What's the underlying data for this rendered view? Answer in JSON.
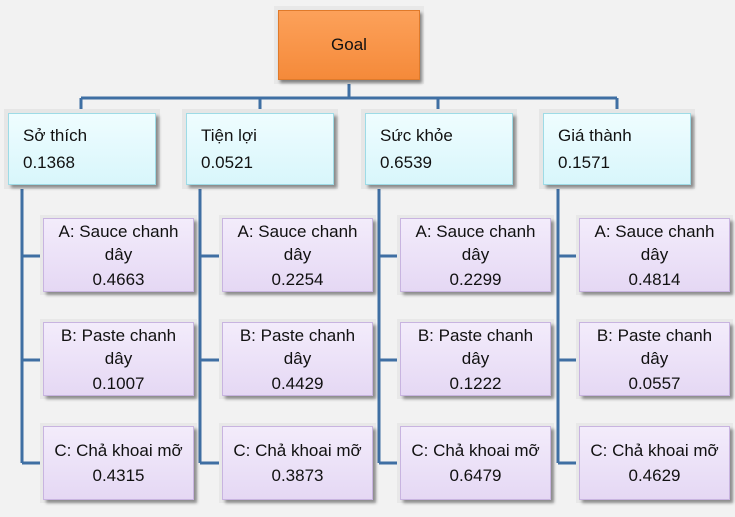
{
  "goal": {
    "label": "Goal"
  },
  "criteria": [
    {
      "name": "Sở thích",
      "weight": "0.1368",
      "alternatives": [
        {
          "label": "A: Sauce chanh dây",
          "value": "0.4663"
        },
        {
          "label": "B: Paste chanh dây",
          "value": "0.1007"
        },
        {
          "label": "C: Chả khoai mỡ",
          "value": "0.4315"
        }
      ]
    },
    {
      "name": "Tiện lợi",
      "weight": "0.0521",
      "alternatives": [
        {
          "label": "A: Sauce chanh dây",
          "value": "0.2254"
        },
        {
          "label": "B: Paste chanh dây",
          "value": "0.4429"
        },
        {
          "label": "C: Chả khoai mỡ",
          "value": "0.3873"
        }
      ]
    },
    {
      "name": "Sức khỏe",
      "weight": "0.6539",
      "alternatives": [
        {
          "label": "A: Sauce chanh dây",
          "value": "0.2299"
        },
        {
          "label": "B: Paste chanh dây",
          "value": "0.1222"
        },
        {
          "label": "C: Chả khoai mỡ",
          "value": "0.6479"
        }
      ]
    },
    {
      "name": "Giá thành",
      "weight": "0.1571",
      "alternatives": [
        {
          "label": "A: Sauce chanh dây",
          "value": "0.4814"
        },
        {
          "label": "B: Paste chanh dây",
          "value": "0.0557"
        },
        {
          "label": "C: Chả khoai mỡ",
          "value": "0.4629"
        }
      ]
    }
  ],
  "colors": {
    "connector": "#3f6fa3",
    "goal": "#f79646",
    "criterion": "#dff7fb",
    "alternative": "#e8dcf5"
  }
}
